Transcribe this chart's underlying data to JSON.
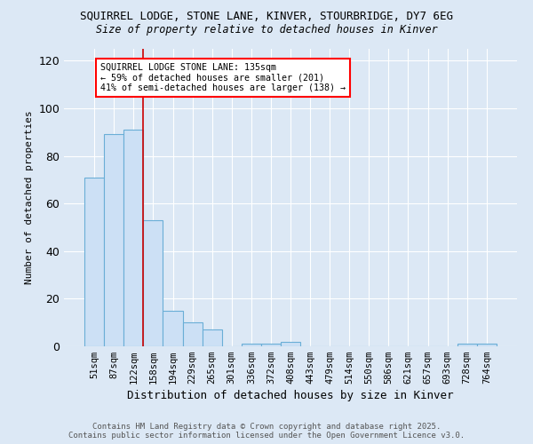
{
  "title1": "SQUIRREL LODGE, STONE LANE, KINVER, STOURBRIDGE, DY7 6EG",
  "title2": "Size of property relative to detached houses in Kinver",
  "xlabel": "Distribution of detached houses by size in Kinver",
  "ylabel": "Number of detached properties",
  "categories": [
    "51sqm",
    "87sqm",
    "122sqm",
    "158sqm",
    "194sqm",
    "229sqm",
    "265sqm",
    "301sqm",
    "336sqm",
    "372sqm",
    "408sqm",
    "443sqm",
    "479sqm",
    "514sqm",
    "550sqm",
    "586sqm",
    "621sqm",
    "657sqm",
    "693sqm",
    "728sqm",
    "764sqm"
  ],
  "values": [
    71,
    89,
    91,
    53,
    15,
    10,
    7,
    0,
    1,
    1,
    2,
    0,
    0,
    0,
    0,
    0,
    0,
    0,
    0,
    1,
    1
  ],
  "bar_color": "#cce0f5",
  "bar_edge_color": "#6aaed6",
  "background_color": "#dce8f5",
  "annotation_title": "SQUIRREL LODGE STONE LANE: 135sqm",
  "annotation_line1": "← 59% of detached houses are smaller (201)",
  "annotation_line2": "41% of semi-detached houses are larger (138) →",
  "footer1": "Contains HM Land Registry data © Crown copyright and database right 2025.",
  "footer2": "Contains public sector information licensed under the Open Government Licence v3.0.",
  "ylim": [
    0,
    125
  ],
  "yticks": [
    0,
    20,
    40,
    60,
    80,
    100,
    120
  ]
}
